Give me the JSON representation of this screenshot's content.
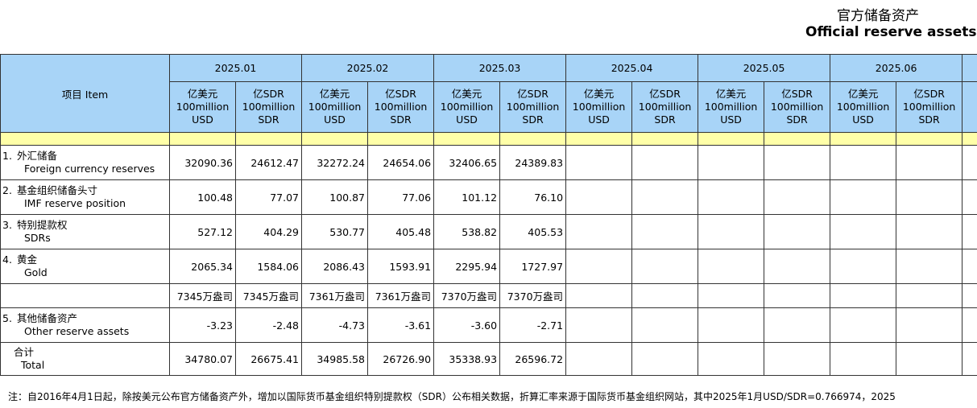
{
  "header": {
    "title_cn": "官方储备资产",
    "title_en": "Official reserve assets"
  },
  "table": {
    "item_header": "项目 Item",
    "months": [
      "2025.01",
      "2025.02",
      "2025.03",
      "2025.04",
      "2025.05",
      "2025.06"
    ],
    "units": [
      {
        "cn": "亿美元",
        "en": "100million",
        "cur": "USD"
      },
      {
        "cn": "亿SDR",
        "en": "100million",
        "cur": "SDR"
      }
    ],
    "rows": [
      {
        "no": "1.",
        "cn": "外汇储备",
        "en": "Foreign currency reserves",
        "values": [
          "32090.36",
          "24612.47",
          "32272.24",
          "24654.06",
          "32406.65",
          "24389.83"
        ]
      },
      {
        "no": "2.",
        "cn": "基金组织储备头寸",
        "en": "IMF reserve position",
        "values": [
          "100.48",
          "77.07",
          "100.87",
          "77.06",
          "101.12",
          "76.10"
        ]
      },
      {
        "no": "3.",
        "cn": "特别提款权",
        "en": "SDRs",
        "values": [
          "527.12",
          "404.29",
          "530.77",
          "405.48",
          "538.82",
          "405.53"
        ]
      },
      {
        "no": "4.",
        "cn": "黄金",
        "en": "Gold",
        "values": [
          "2065.34",
          "1584.06",
          "2086.43",
          "1593.91",
          "2295.94",
          "1727.97"
        ]
      },
      {
        "values": [
          "7345万盎司",
          "7345万盎司",
          "7361万盎司",
          "7361万盎司",
          "7370万盎司",
          "7370万盎司"
        ]
      },
      {
        "no": "5.",
        "cn": "其他储备资产",
        "en": "Other reserve assets",
        "values": [
          "-3.23",
          "-2.48",
          "-4.73",
          "-3.61",
          "-3.60",
          "-2.71"
        ]
      },
      {
        "cn": "合计",
        "en": "Total",
        "values": [
          "34780.07",
          "26675.41",
          "34985.58",
          "26726.90",
          "35338.93",
          "26596.72"
        ]
      }
    ]
  },
  "note": "注：自2016年4月1日起，除按美元公布官方储备资产外，增加以国际货币基金组织特别提款权（SDR）公布相关数据，折算汇率来源于国际货币基金组织网站，其中2025年1月USD/SDR=0.766974，2025"
}
